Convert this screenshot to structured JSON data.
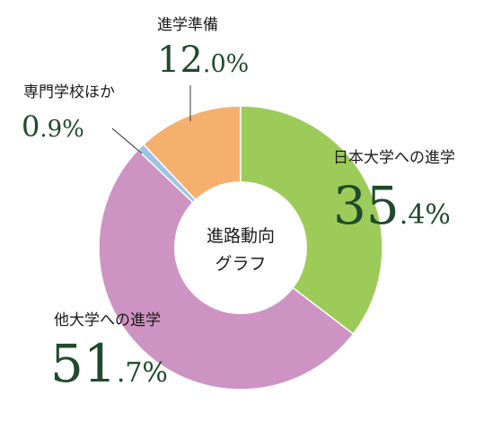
{
  "chart_data": {
    "type": "pie",
    "center_label": [
      "進路動向",
      "グラフ"
    ],
    "slices": [
      {
        "label": "日本大学への進学",
        "value": 35.4,
        "int": "35",
        "dec": ".4%",
        "color": "#9ccb59"
      },
      {
        "label": "他大学への進学",
        "value": 51.7,
        "int": "51",
        "dec": ".7%",
        "color": "#cd93c2"
      },
      {
        "label": "専門学校ほか",
        "value": 0.9,
        "int": "0",
        "dec": ".9%",
        "color": "#9ec3e6"
      },
      {
        "label": "進学準備",
        "value": 12.0,
        "int": "12",
        "dec": ".0%",
        "color": "#f5b06e"
      }
    ]
  }
}
